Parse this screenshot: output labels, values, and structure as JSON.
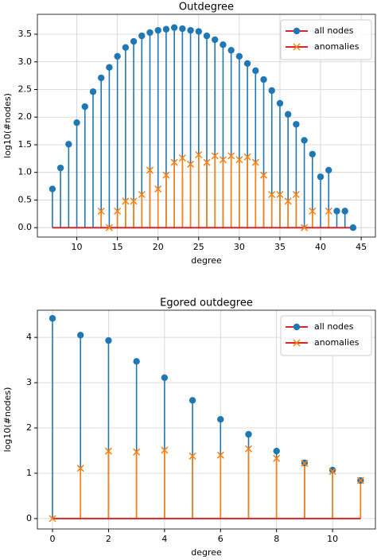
{
  "chart_data": [
    {
      "type": "stem",
      "title": "Outdegree",
      "xlabel": "degree",
      "ylabel": "log10(#nodes)",
      "xlim": [
        5.15,
        46.75
      ],
      "ylim": [
        -0.17,
        3.86
      ],
      "xticks": [
        10,
        15,
        20,
        25,
        30,
        35,
        40,
        45
      ],
      "yticks": [
        {
          "value": 0,
          "label": "0.0"
        },
        {
          "value": 0.5,
          "label": "0.5"
        },
        {
          "value": 1,
          "label": "1.0"
        },
        {
          "value": 1.5,
          "label": "1.5"
        },
        {
          "value": 2,
          "label": "2.0"
        },
        {
          "value": 2.5,
          "label": "2.5"
        },
        {
          "value": 3,
          "label": "3.0"
        },
        {
          "value": 3.5,
          "label": "3.5"
        }
      ],
      "grid": true,
      "legend": "upper right",
      "baseline_color": "#d62728",
      "series": [
        {
          "name": "all nodes",
          "color": "#1f77b4",
          "marker": "o",
          "x": [
            7,
            8,
            9,
            10,
            11,
            12,
            13,
            14,
            15,
            16,
            17,
            18,
            19,
            20,
            21,
            22,
            23,
            24,
            25,
            26,
            27,
            28,
            29,
            30,
            31,
            32,
            33,
            34,
            35,
            36,
            37,
            38,
            39,
            40,
            41,
            42,
            43,
            44
          ],
          "values": [
            0.7,
            1.08,
            1.51,
            1.9,
            2.19,
            2.46,
            2.71,
            2.9,
            3.1,
            3.26,
            3.37,
            3.47,
            3.53,
            3.57,
            3.59,
            3.62,
            3.6,
            3.57,
            3.55,
            3.47,
            3.4,
            3.31,
            3.21,
            3.1,
            2.97,
            2.84,
            2.68,
            2.48,
            2.25,
            2.05,
            1.87,
            1.58,
            1.33,
            0.92,
            1.04,
            0.3,
            0.3,
            0.0
          ]
        },
        {
          "name": "anomalies",
          "color": "#ff7f0e",
          "marker": "x",
          "x": [
            13,
            14,
            15,
            16,
            17,
            18,
            19,
            20,
            21,
            22,
            23,
            24,
            25,
            26,
            27,
            28,
            29,
            30,
            31,
            32,
            33,
            34,
            35,
            36,
            37,
            38,
            39,
            41
          ],
          "values": [
            0.3,
            0.0,
            0.3,
            0.48,
            0.48,
            0.6,
            1.04,
            0.7,
            0.95,
            1.18,
            1.26,
            1.15,
            1.32,
            1.18,
            1.3,
            1.23,
            1.3,
            1.23,
            1.28,
            1.18,
            0.95,
            0.6,
            0.6,
            0.48,
            0.6,
            0.0,
            0.3,
            0.3
          ]
        }
      ]
    },
    {
      "type": "stem",
      "title": "Egored outdegree",
      "xlabel": "degree",
      "ylabel": "log10(#nodes)",
      "xlim": [
        -0.54,
        11.53
      ],
      "ylim": [
        -0.23,
        4.6
      ],
      "xticks": [
        0,
        2,
        4,
        6,
        8,
        10
      ],
      "yticks": [
        0,
        1,
        2,
        3,
        4
      ],
      "grid": true,
      "legend": "upper right",
      "baseline_color": "#d62728",
      "series": [
        {
          "name": "all nodes",
          "color": "#1f77b4",
          "marker": "o",
          "x": [
            0,
            1,
            2,
            3,
            4,
            5,
            6,
            7,
            8,
            9,
            10,
            11
          ],
          "values": [
            4.42,
            4.05,
            3.93,
            3.47,
            3.11,
            2.61,
            2.19,
            1.86,
            1.49,
            1.23,
            1.07,
            0.84
          ]
        },
        {
          "name": "anomalies",
          "color": "#ff7f0e",
          "marker": "x",
          "x": [
            0,
            1,
            2,
            3,
            4,
            5,
            6,
            7,
            8,
            9,
            10,
            11
          ],
          "values": [
            0.0,
            1.11,
            1.49,
            1.47,
            1.51,
            1.38,
            1.4,
            1.54,
            1.33,
            1.22,
            1.04,
            0.84
          ]
        }
      ]
    }
  ]
}
